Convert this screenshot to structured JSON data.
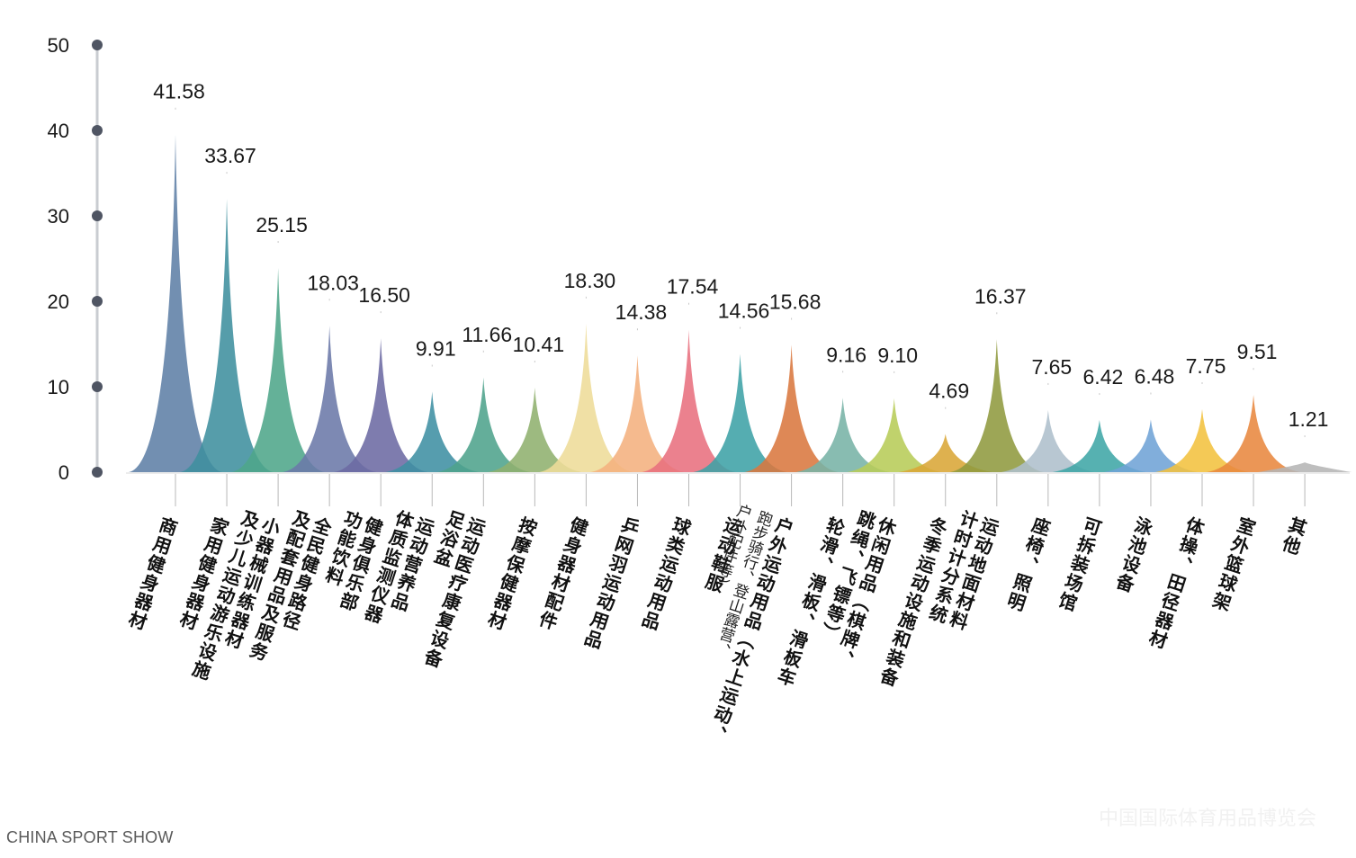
{
  "chart_data": {
    "type": "area",
    "ylim": [
      0,
      50
    ],
    "yticks": [
      0,
      10,
      20,
      30,
      40,
      50
    ],
    "grid": false,
    "categories": [
      {
        "lines": [
          "商用健身器材"
        ],
        "value": 41.58,
        "value_label": "41.58",
        "color": "#5f7fa6"
      },
      {
        "lines": [
          "家用健身器材"
        ],
        "value": 33.67,
        "value_label": "33.67",
        "color": "#3f8f9e"
      },
      {
        "lines": [
          "小器械训练器材",
          "及少儿运动游乐设施"
        ],
        "value": 25.15,
        "value_label": "25.15",
        "color": "#4fa68a"
      },
      {
        "lines": [
          "全民健身路径",
          "及配套用品及服务"
        ],
        "value": 18.03,
        "value_label": "18.03",
        "color": "#6b79a8"
      },
      {
        "lines": [
          "健身俱乐部",
          "功能饮料"
        ],
        "value": 16.5,
        "value_label": "16.50",
        "color": "#6c6aa3"
      },
      {
        "lines": [
          "运动营养品",
          "体质监测仪器"
        ],
        "value": 9.91,
        "value_label": "9.91",
        "color": "#3f8fa3"
      },
      {
        "lines": [
          "运动医疗康复设备",
          "足浴盆"
        ],
        "value": 11.66,
        "value_label": "11.66",
        "color": "#4fa38c"
      },
      {
        "lines": [
          "按摩保健器材"
        ],
        "value": 10.41,
        "value_label": "10.41",
        "color": "#8fb06e"
      },
      {
        "lines": [
          "健身器材配件"
        ],
        "value": 18.3,
        "value_label": "18.30",
        "color": "#eedc98"
      },
      {
        "lines": [
          "乒网羽运动用品"
        ],
        "value": 14.38,
        "value_label": "14.38",
        "color": "#f4b07e"
      },
      {
        "lines": [
          "球类运动用品"
        ],
        "value": 17.54,
        "value_label": "17.54",
        "color": "#e8707e"
      },
      {
        "lines": [
          "运动鞋服"
        ],
        "value": 14.56,
        "value_label": "14.56",
        "color": "#3ea2a6"
      },
      {
        "lines": [
          "户外运动用品（水上运动、",
          "跑步骑行、登山露营、",
          "户外配件等）"
        ],
        "value": 15.68,
        "value_label": "15.68",
        "color": "#d9773f"
      },
      {
        "lines": [
          "轮滑、滑板、滑板车"
        ],
        "value": 9.16,
        "value_label": "9.16",
        "color": "#78b3a6"
      },
      {
        "lines": [
          "休闲用品（棋牌、",
          "跳绳、飞镖等）"
        ],
        "value": 9.1,
        "value_label": "9.10",
        "color": "#b7cc58"
      },
      {
        "lines": [
          "冬季运动设施和装备"
        ],
        "value": 4.69,
        "value_label": "4.69",
        "color": "#d9a637"
      },
      {
        "lines": [
          "运动地面材料",
          "计时计分系统"
        ],
        "value": 16.37,
        "value_label": "16.37",
        "color": "#8f9a3f"
      },
      {
        "lines": [
          "座椅、照明"
        ],
        "value": 7.65,
        "value_label": "7.65",
        "color": "#aebfcc"
      },
      {
        "lines": [
          "可拆装场馆"
        ],
        "value": 6.42,
        "value_label": "6.42",
        "color": "#3fa6a6"
      },
      {
        "lines": [
          "泳池设备"
        ],
        "value": 6.48,
        "value_label": "6.48",
        "color": "#6fa3d6"
      },
      {
        "lines": [
          "体操、田径器材"
        ],
        "value": 7.75,
        "value_label": "7.75",
        "color": "#f2c13f"
      },
      {
        "lines": [
          "室外篮球架"
        ],
        "value": 9.51,
        "value_label": "9.51",
        "color": "#e8873f"
      },
      {
        "lines": [
          "其他"
        ],
        "value": 1.21,
        "value_label": "1.21",
        "color": "#b5b5b5"
      }
    ]
  },
  "footer": {
    "source": "CHINA SPORT SHOW"
  },
  "watermark": {
    "text": "中国国际体育用品博览会"
  }
}
